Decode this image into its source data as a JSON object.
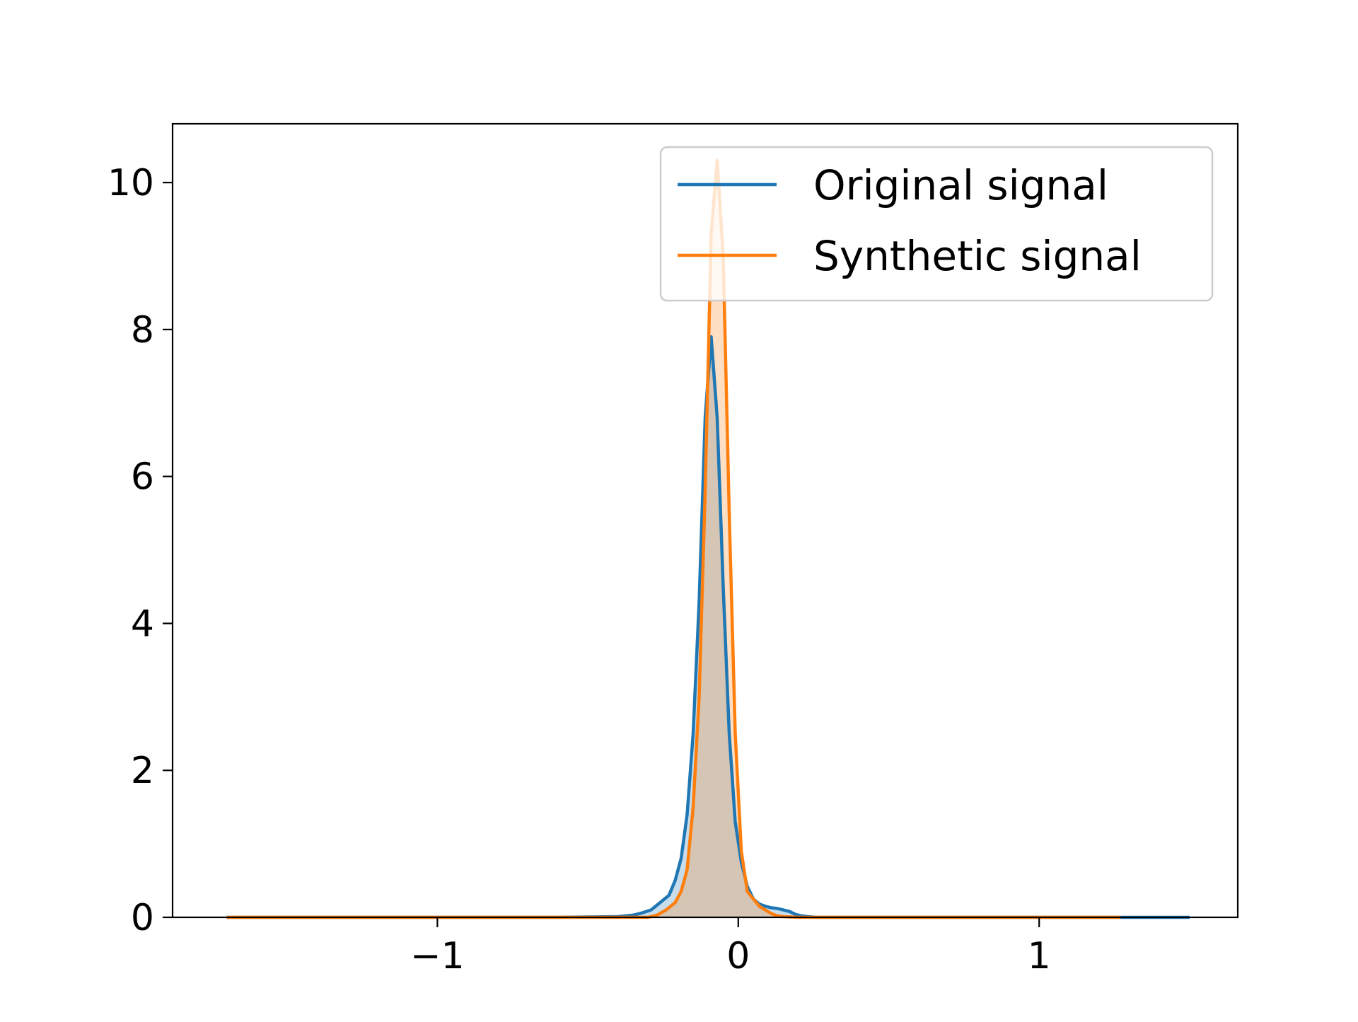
{
  "chart_data": {
    "type": "area",
    "title": "",
    "xlabel": "",
    "ylabel": "",
    "xlim": [
      -1.88,
      1.66
    ],
    "ylim": [
      0,
      10.8
    ],
    "xticks": [
      -1,
      0,
      1
    ],
    "xtick_labels": [
      "−1",
      "0",
      "1"
    ],
    "yticks": [
      0,
      2,
      4,
      6,
      8,
      10
    ],
    "ytick_labels": [
      "0",
      "2",
      "4",
      "6",
      "8",
      "10"
    ],
    "grid": false,
    "legend_position": "top-right",
    "series": [
      {
        "name": "Original signal",
        "color": "#1f77b4",
        "fill_color": "#1f77b4",
        "x": [
          -1.7,
          -1.0,
          -0.6,
          -0.4,
          -0.35,
          -0.32,
          -0.29,
          -0.26,
          -0.23,
          -0.21,
          -0.19,
          -0.17,
          -0.15,
          -0.13,
          -0.11,
          -0.09,
          -0.07,
          -0.05,
          -0.03,
          -0.01,
          0.01,
          0.03,
          0.05,
          0.07,
          0.09,
          0.11,
          0.13,
          0.15,
          0.17,
          0.19,
          0.21,
          0.23,
          0.26,
          0.3,
          0.4,
          1.0,
          1.5
        ],
        "y": [
          0,
          0,
          0,
          0.01,
          0.03,
          0.06,
          0.1,
          0.2,
          0.3,
          0.5,
          0.8,
          1.4,
          2.5,
          4.3,
          6.8,
          7.9,
          6.8,
          4.5,
          2.5,
          1.3,
          0.75,
          0.42,
          0.25,
          0.18,
          0.15,
          0.13,
          0.12,
          0.1,
          0.08,
          0.04,
          0.02,
          0.01,
          0,
          0,
          0,
          0,
          0
        ]
      },
      {
        "name": "Synthetic signal",
        "color": "#ff7f0e",
        "fill_color": "#ff7f0e",
        "x": [
          -1.7,
          -1.0,
          -0.5,
          -0.3,
          -0.27,
          -0.24,
          -0.21,
          -0.19,
          -0.17,
          -0.15,
          -0.13,
          -0.11,
          -0.09,
          -0.07,
          -0.05,
          -0.03,
          -0.01,
          0.01,
          0.03,
          0.05,
          0.07,
          0.09,
          0.11,
          0.13,
          0.15,
          0.2,
          0.4,
          1.0,
          1.27
        ],
        "y": [
          0,
          0,
          0,
          0,
          0.03,
          0.1,
          0.2,
          0.35,
          0.65,
          1.5,
          3.0,
          5.8,
          9.3,
          10.3,
          9.0,
          5.5,
          2.5,
          0.9,
          0.35,
          0.25,
          0.15,
          0.1,
          0.05,
          0.02,
          0.01,
          0,
          0,
          0,
          0
        ]
      }
    ]
  }
}
